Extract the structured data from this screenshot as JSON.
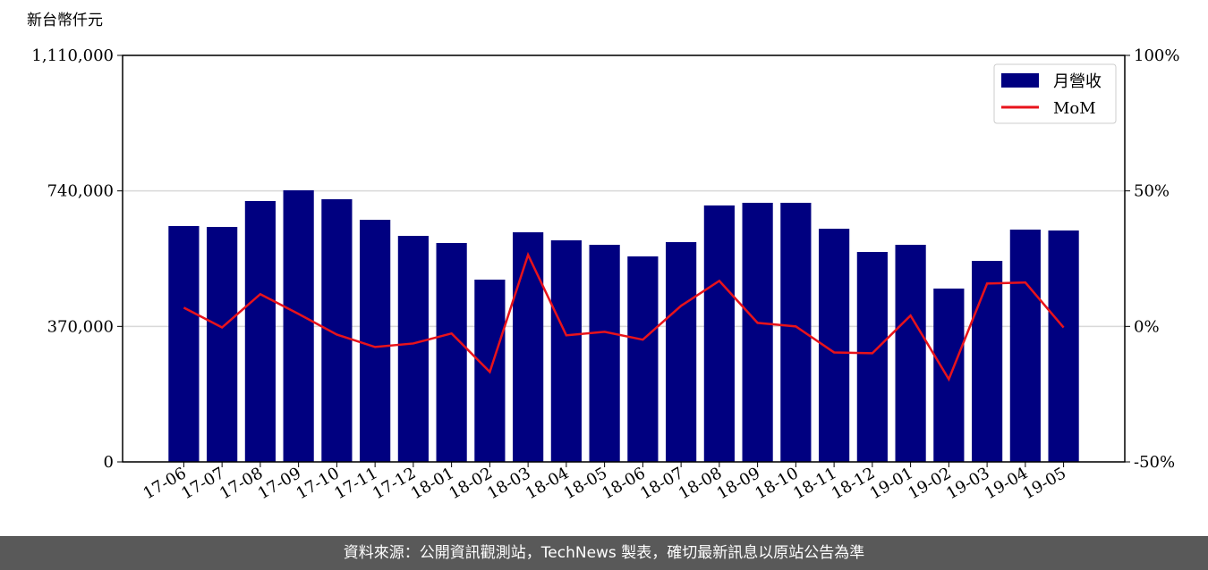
{
  "chart_data": {
    "type": "bar_line",
    "y_label": "新台幣仟元",
    "categories": [
      "17-06",
      "17-07",
      "17-08",
      "17-09",
      "17-10",
      "17-11",
      "17-12",
      "18-01",
      "18-02",
      "18-03",
      "18-04",
      "18-05",
      "18-06",
      "18-07",
      "18-08",
      "18-09",
      "18-10",
      "18-11",
      "18-12",
      "19-01",
      "19-02",
      "19-03",
      "19-04",
      "19-05"
    ],
    "series": [
      {
        "name": "月營收",
        "color": "#000080",
        "values": [
          644000,
          641600,
          712400,
          741600,
          717200,
          661100,
          617200,
          597700,
          497700,
          627000,
          605000,
          592800,
          561100,
          600100,
          700200,
          707500,
          707500,
          636700,
          573300,
          592800,
          473300,
          548900,
          634300,
          631900
        ]
      },
      {
        "name": "MoM",
        "color": "#e8131b",
        "axis": "y2",
        "values": [
          6.9,
          -0.4,
          11.9,
          4.6,
          -3.0,
          -7.6,
          -6.3,
          -2.6,
          -16.8,
          26.4,
          -3.3,
          -2.0,
          -4.9,
          7.6,
          16.8,
          1.3,
          0.0,
          -9.6,
          -9.9,
          4.0,
          -19.5,
          15.8,
          16.2,
          -0.4
        ]
      }
    ],
    "ylim": [
      0,
      1110000
    ],
    "yticks": [
      0,
      {
        "value": 370000,
        "label": "370,000"
      },
      {
        "value": 740000,
        "label": "740,000"
      },
      {
        "value": 1110000,
        "label": "1,110,000"
      }
    ],
    "y2lim": [
      -50,
      100
    ],
    "y2ticks": [
      {
        "value": -50,
        "label": "-50%"
      },
      {
        "value": 0,
        "label": "0%"
      },
      {
        "value": 50,
        "label": "50%"
      },
      {
        "value": 100,
        "label": "100%"
      }
    ],
    "grid": true,
    "legend": "upper right"
  },
  "footer": "資料來源：公開資訊觀測站，TechNews 製表，確切最新訊息以原站公告為準"
}
